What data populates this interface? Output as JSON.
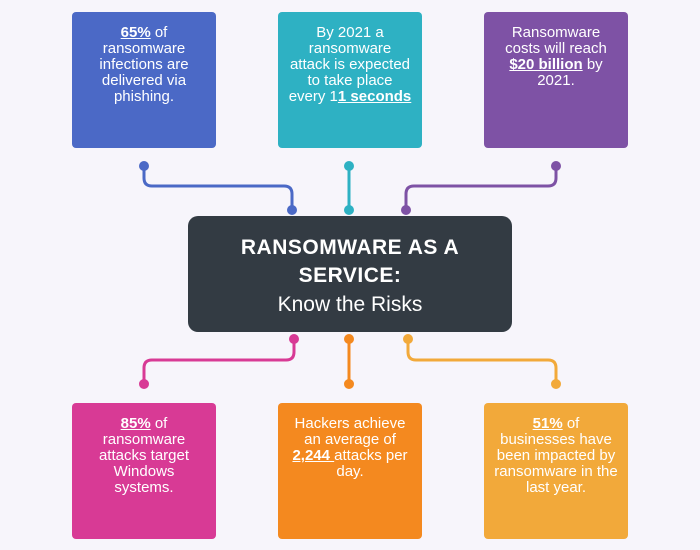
{
  "center": {
    "title": "RANSOMWARE AS A SERVICE:",
    "subtitle": "Know the Risks"
  },
  "cards": {
    "top_left": {
      "highlight": "65%",
      "text": " of ransomware infections are delivered via phishing."
    },
    "top_center": {
      "prefix": "By 2021 a ransomware attack is expected to take place every 1",
      "highlight": "1 seconds"
    },
    "top_right": {
      "prefix": "Ransomware costs will reach ",
      "highlight": "$20 billion",
      "suffix": " by 2021."
    },
    "bottom_left": {
      "highlight": "85%",
      "text": " of ransomware attacks target Windows systems."
    },
    "bottom_center": {
      "prefix": "Hackers achieve an average of ",
      "highlight": "2,244 ",
      "suffix": "attacks per day."
    },
    "bottom_right": {
      "highlight": "51%",
      "text": " of businesses have been impacted by ransomware in the last year."
    }
  },
  "colors": {
    "top_left": "#4b69c6",
    "top_center": "#2eb1c3",
    "top_right": "#7e52a5",
    "bottom_left": "#d83a95",
    "bottom_center": "#f4891f",
    "bottom_right": "#f2a93a",
    "center": "#333b43"
  }
}
